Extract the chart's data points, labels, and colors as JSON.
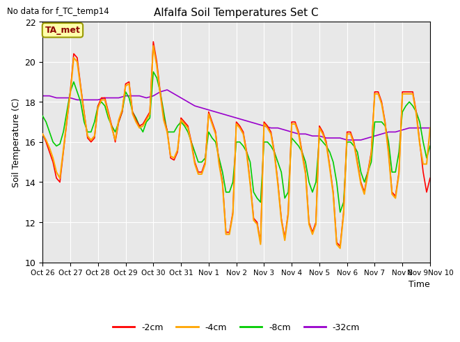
{
  "title": "Alfalfa Soil Temperatures Set C",
  "ylabel": "Soil Temperature (C)",
  "xlabel": "Time",
  "no_data_text": "No data for f_TC_temp14",
  "annotation_text": "TA_met",
  "ylim": [
    10,
    22
  ],
  "yticks": [
    10,
    12,
    14,
    16,
    18,
    20,
    22
  ],
  "xlim": [
    0,
    336
  ],
  "xtick_positions": [
    0,
    24,
    48,
    72,
    96,
    120,
    144,
    168,
    192,
    216,
    240,
    264,
    288,
    312,
    336
  ],
  "xtick_labels": [
    "Oct 26",
    "Oct 27",
    "Oct 28",
    "Oct 29",
    "Oct 30",
    "Oct 31",
    "Nov 1",
    "Nov 2",
    "Nov 3",
    "Nov 4",
    "Nov 5",
    "Nov 6",
    "Nov 7",
    "Nov 8",
    "Nov 9Nov 10"
  ],
  "colors": {
    "-2cm": "#ff0000",
    "-4cm": "#ffa500",
    "-8cm": "#00cc00",
    "-32cm": "#9900cc"
  },
  "background_color": "#e8e8e8",
  "series_2cm": [
    [
      0,
      16.4
    ],
    [
      3,
      16.0
    ],
    [
      6,
      15.5
    ],
    [
      9,
      15.0
    ],
    [
      12,
      14.2
    ],
    [
      15,
      14.0
    ],
    [
      18,
      15.5
    ],
    [
      21,
      17.0
    ],
    [
      24,
      18.5
    ],
    [
      27,
      20.4
    ],
    [
      30,
      20.2
    ],
    [
      33,
      18.8
    ],
    [
      36,
      17.5
    ],
    [
      39,
      16.2
    ],
    [
      42,
      16.0
    ],
    [
      45,
      16.2
    ],
    [
      48,
      17.8
    ],
    [
      51,
      18.2
    ],
    [
      54,
      18.2
    ],
    [
      57,
      17.5
    ],
    [
      60,
      16.8
    ],
    [
      63,
      16.0
    ],
    [
      66,
      17.0
    ],
    [
      69,
      17.5
    ],
    [
      72,
      18.9
    ],
    [
      75,
      19.0
    ],
    [
      78,
      17.5
    ],
    [
      81,
      17.1
    ],
    [
      84,
      16.8
    ],
    [
      87,
      16.9
    ],
    [
      90,
      17.2
    ],
    [
      93,
      17.5
    ],
    [
      96,
      21.0
    ],
    [
      99,
      20.0
    ],
    [
      102,
      18.5
    ],
    [
      105,
      17.2
    ],
    [
      108,
      16.6
    ],
    [
      111,
      15.2
    ],
    [
      114,
      15.1
    ],
    [
      117,
      15.5
    ],
    [
      120,
      17.2
    ],
    [
      123,
      17.0
    ],
    [
      126,
      16.8
    ],
    [
      129,
      16.0
    ],
    [
      132,
      15.0
    ],
    [
      135,
      14.5
    ],
    [
      138,
      14.5
    ],
    [
      141,
      15.0
    ],
    [
      144,
      17.5
    ],
    [
      147,
      17.0
    ],
    [
      150,
      16.5
    ],
    [
      153,
      15.0
    ],
    [
      156,
      14.0
    ],
    [
      159,
      11.5
    ],
    [
      162,
      11.5
    ],
    [
      165,
      12.5
    ],
    [
      168,
      17.0
    ],
    [
      171,
      16.8
    ],
    [
      174,
      16.5
    ],
    [
      177,
      15.5
    ],
    [
      180,
      14.0
    ],
    [
      183,
      12.2
    ],
    [
      186,
      12.0
    ],
    [
      189,
      11.0
    ],
    [
      192,
      17.0
    ],
    [
      195,
      16.8
    ],
    [
      198,
      16.5
    ],
    [
      201,
      15.5
    ],
    [
      204,
      14.0
    ],
    [
      207,
      12.2
    ],
    [
      210,
      11.2
    ],
    [
      213,
      12.5
    ],
    [
      216,
      17.0
    ],
    [
      219,
      17.0
    ],
    [
      222,
      16.5
    ],
    [
      225,
      15.5
    ],
    [
      228,
      14.5
    ],
    [
      231,
      12.0
    ],
    [
      234,
      11.5
    ],
    [
      237,
      12.0
    ],
    [
      240,
      16.8
    ],
    [
      243,
      16.5
    ],
    [
      246,
      16.0
    ],
    [
      249,
      14.8
    ],
    [
      252,
      13.5
    ],
    [
      255,
      11.0
    ],
    [
      258,
      10.8
    ],
    [
      261,
      12.5
    ],
    [
      264,
      16.5
    ],
    [
      267,
      16.5
    ],
    [
      270,
      16.0
    ],
    [
      273,
      15.0
    ],
    [
      276,
      14.0
    ],
    [
      279,
      13.5
    ],
    [
      282,
      14.5
    ],
    [
      285,
      15.5
    ],
    [
      288,
      18.5
    ],
    [
      291,
      18.5
    ],
    [
      294,
      18.0
    ],
    [
      297,
      17.0
    ],
    [
      300,
      15.5
    ],
    [
      303,
      13.5
    ],
    [
      306,
      13.3
    ],
    [
      309,
      14.5
    ],
    [
      312,
      18.5
    ],
    [
      315,
      18.5
    ],
    [
      318,
      18.5
    ],
    [
      321,
      18.5
    ],
    [
      324,
      17.5
    ],
    [
      327,
      16.0
    ],
    [
      330,
      14.5
    ],
    [
      333,
      13.5
    ],
    [
      336,
      14.2
    ]
  ],
  "series_4cm": [
    [
      0,
      16.4
    ],
    [
      3,
      16.1
    ],
    [
      6,
      15.7
    ],
    [
      9,
      15.2
    ],
    [
      12,
      14.5
    ],
    [
      15,
      14.2
    ],
    [
      18,
      15.6
    ],
    [
      21,
      17.1
    ],
    [
      24,
      18.4
    ],
    [
      27,
      20.2
    ],
    [
      30,
      20.0
    ],
    [
      33,
      18.7
    ],
    [
      36,
      17.4
    ],
    [
      39,
      16.3
    ],
    [
      42,
      16.1
    ],
    [
      45,
      16.3
    ],
    [
      48,
      17.7
    ],
    [
      51,
      18.1
    ],
    [
      54,
      18.1
    ],
    [
      57,
      17.4
    ],
    [
      60,
      16.7
    ],
    [
      63,
      16.1
    ],
    [
      66,
      17.1
    ],
    [
      69,
      17.6
    ],
    [
      72,
      18.8
    ],
    [
      75,
      18.9
    ],
    [
      78,
      17.4
    ],
    [
      81,
      17.0
    ],
    [
      84,
      16.7
    ],
    [
      87,
      16.8
    ],
    [
      90,
      17.1
    ],
    [
      93,
      17.4
    ],
    [
      96,
      20.8
    ],
    [
      99,
      19.8
    ],
    [
      102,
      18.4
    ],
    [
      105,
      17.1
    ],
    [
      108,
      16.5
    ],
    [
      111,
      15.3
    ],
    [
      114,
      15.2
    ],
    [
      117,
      15.6
    ],
    [
      120,
      17.1
    ],
    [
      123,
      16.9
    ],
    [
      126,
      16.7
    ],
    [
      129,
      15.9
    ],
    [
      132,
      14.9
    ],
    [
      135,
      14.4
    ],
    [
      138,
      14.4
    ],
    [
      141,
      14.9
    ],
    [
      144,
      17.4
    ],
    [
      147,
      16.9
    ],
    [
      150,
      16.4
    ],
    [
      153,
      14.9
    ],
    [
      156,
      13.9
    ],
    [
      159,
      11.4
    ],
    [
      162,
      11.4
    ],
    [
      165,
      12.4
    ],
    [
      168,
      16.9
    ],
    [
      171,
      16.7
    ],
    [
      174,
      16.4
    ],
    [
      177,
      15.4
    ],
    [
      180,
      13.9
    ],
    [
      183,
      12.1
    ],
    [
      186,
      11.9
    ],
    [
      189,
      10.9
    ],
    [
      192,
      16.9
    ],
    [
      195,
      16.7
    ],
    [
      198,
      16.4
    ],
    [
      201,
      15.4
    ],
    [
      204,
      13.9
    ],
    [
      207,
      12.1
    ],
    [
      210,
      11.1
    ],
    [
      213,
      12.4
    ],
    [
      216,
      16.9
    ],
    [
      219,
      16.9
    ],
    [
      222,
      16.4
    ],
    [
      225,
      15.4
    ],
    [
      228,
      14.4
    ],
    [
      231,
      11.9
    ],
    [
      234,
      11.4
    ],
    [
      237,
      11.9
    ],
    [
      240,
      16.7
    ],
    [
      243,
      16.4
    ],
    [
      246,
      15.9
    ],
    [
      249,
      14.7
    ],
    [
      252,
      13.4
    ],
    [
      255,
      10.9
    ],
    [
      258,
      10.7
    ],
    [
      261,
      12.4
    ],
    [
      264,
      16.4
    ],
    [
      267,
      16.4
    ],
    [
      270,
      15.9
    ],
    [
      273,
      14.9
    ],
    [
      276,
      13.9
    ],
    [
      279,
      13.4
    ],
    [
      282,
      14.4
    ],
    [
      285,
      15.4
    ],
    [
      288,
      18.4
    ],
    [
      291,
      18.4
    ],
    [
      294,
      17.9
    ],
    [
      297,
      16.9
    ],
    [
      300,
      15.4
    ],
    [
      303,
      13.4
    ],
    [
      306,
      13.2
    ],
    [
      309,
      14.4
    ],
    [
      312,
      18.4
    ],
    [
      315,
      18.4
    ],
    [
      318,
      18.4
    ],
    [
      321,
      18.4
    ],
    [
      324,
      17.4
    ],
    [
      327,
      15.9
    ],
    [
      330,
      14.9
    ],
    [
      333,
      14.9
    ],
    [
      336,
      16.7
    ]
  ],
  "series_8cm": [
    [
      0,
      17.3
    ],
    [
      3,
      17.0
    ],
    [
      6,
      16.5
    ],
    [
      9,
      16.0
    ],
    [
      12,
      15.8
    ],
    [
      15,
      15.9
    ],
    [
      18,
      16.5
    ],
    [
      21,
      17.5
    ],
    [
      24,
      18.5
    ],
    [
      27,
      19.0
    ],
    [
      30,
      18.5
    ],
    [
      33,
      18.0
    ],
    [
      36,
      17.0
    ],
    [
      39,
      16.5
    ],
    [
      42,
      16.5
    ],
    [
      45,
      17.0
    ],
    [
      48,
      17.8
    ],
    [
      51,
      18.0
    ],
    [
      54,
      17.8
    ],
    [
      57,
      17.2
    ],
    [
      60,
      16.8
    ],
    [
      63,
      16.5
    ],
    [
      66,
      17.0
    ],
    [
      69,
      17.5
    ],
    [
      72,
      18.5
    ],
    [
      75,
      18.2
    ],
    [
      78,
      17.5
    ],
    [
      81,
      17.2
    ],
    [
      84,
      16.8
    ],
    [
      87,
      16.5
    ],
    [
      90,
      17.0
    ],
    [
      93,
      17.2
    ],
    [
      96,
      19.5
    ],
    [
      99,
      19.2
    ],
    [
      102,
      18.5
    ],
    [
      105,
      17.5
    ],
    [
      108,
      16.5
    ],
    [
      111,
      16.5
    ],
    [
      114,
      16.5
    ],
    [
      117,
      16.8
    ],
    [
      120,
      17.0
    ],
    [
      123,
      16.8
    ],
    [
      126,
      16.5
    ],
    [
      129,
      16.0
    ],
    [
      132,
      15.5
    ],
    [
      135,
      15.0
    ],
    [
      138,
      15.0
    ],
    [
      141,
      15.2
    ],
    [
      144,
      16.5
    ],
    [
      147,
      16.2
    ],
    [
      150,
      16.0
    ],
    [
      153,
      15.2
    ],
    [
      156,
      14.5
    ],
    [
      159,
      13.5
    ],
    [
      162,
      13.5
    ],
    [
      165,
      14.0
    ],
    [
      168,
      16.0
    ],
    [
      171,
      16.0
    ],
    [
      174,
      15.8
    ],
    [
      177,
      15.5
    ],
    [
      180,
      15.0
    ],
    [
      183,
      13.5
    ],
    [
      186,
      13.2
    ],
    [
      189,
      13.0
    ],
    [
      192,
      16.0
    ],
    [
      195,
      16.0
    ],
    [
      198,
      15.8
    ],
    [
      201,
      15.5
    ],
    [
      204,
      15.0
    ],
    [
      207,
      14.5
    ],
    [
      210,
      13.2
    ],
    [
      213,
      13.5
    ],
    [
      216,
      16.2
    ],
    [
      219,
      16.0
    ],
    [
      222,
      15.8
    ],
    [
      225,
      15.5
    ],
    [
      228,
      15.0
    ],
    [
      231,
      14.0
    ],
    [
      234,
      13.5
    ],
    [
      237,
      14.0
    ],
    [
      240,
      16.2
    ],
    [
      243,
      16.0
    ],
    [
      246,
      15.8
    ],
    [
      249,
      15.5
    ],
    [
      252,
      15.0
    ],
    [
      255,
      14.0
    ],
    [
      258,
      12.5
    ],
    [
      261,
      13.0
    ],
    [
      264,
      16.0
    ],
    [
      267,
      16.0
    ],
    [
      270,
      15.8
    ],
    [
      273,
      15.5
    ],
    [
      276,
      14.5
    ],
    [
      279,
      14.0
    ],
    [
      282,
      14.5
    ],
    [
      285,
      15.0
    ],
    [
      288,
      17.0
    ],
    [
      291,
      17.0
    ],
    [
      294,
      17.0
    ],
    [
      297,
      16.8
    ],
    [
      300,
      16.0
    ],
    [
      303,
      14.5
    ],
    [
      306,
      14.5
    ],
    [
      309,
      15.5
    ],
    [
      312,
      17.5
    ],
    [
      315,
      17.8
    ],
    [
      318,
      18.0
    ],
    [
      321,
      17.8
    ],
    [
      324,
      17.5
    ],
    [
      327,
      17.0
    ],
    [
      330,
      16.0
    ],
    [
      333,
      15.2
    ],
    [
      336,
      15.8
    ]
  ],
  "series_32cm": [
    [
      0,
      18.3
    ],
    [
      6,
      18.3
    ],
    [
      12,
      18.2
    ],
    [
      18,
      18.2
    ],
    [
      24,
      18.2
    ],
    [
      30,
      18.1
    ],
    [
      36,
      18.1
    ],
    [
      42,
      18.1
    ],
    [
      48,
      18.1
    ],
    [
      54,
      18.2
    ],
    [
      60,
      18.2
    ],
    [
      66,
      18.2
    ],
    [
      72,
      18.3
    ],
    [
      78,
      18.3
    ],
    [
      84,
      18.3
    ],
    [
      90,
      18.2
    ],
    [
      96,
      18.3
    ],
    [
      102,
      18.5
    ],
    [
      108,
      18.6
    ],
    [
      114,
      18.4
    ],
    [
      120,
      18.2
    ],
    [
      126,
      18.0
    ],
    [
      132,
      17.8
    ],
    [
      138,
      17.7
    ],
    [
      144,
      17.6
    ],
    [
      150,
      17.5
    ],
    [
      156,
      17.4
    ],
    [
      162,
      17.3
    ],
    [
      168,
      17.2
    ],
    [
      174,
      17.1
    ],
    [
      180,
      17.0
    ],
    [
      186,
      16.9
    ],
    [
      192,
      16.8
    ],
    [
      198,
      16.7
    ],
    [
      204,
      16.7
    ],
    [
      210,
      16.6
    ],
    [
      216,
      16.5
    ],
    [
      222,
      16.4
    ],
    [
      228,
      16.4
    ],
    [
      234,
      16.3
    ],
    [
      240,
      16.3
    ],
    [
      246,
      16.2
    ],
    [
      252,
      16.2
    ],
    [
      258,
      16.2
    ],
    [
      264,
      16.1
    ],
    [
      270,
      16.1
    ],
    [
      276,
      16.1
    ],
    [
      282,
      16.2
    ],
    [
      288,
      16.3
    ],
    [
      294,
      16.4
    ],
    [
      300,
      16.5
    ],
    [
      306,
      16.5
    ],
    [
      312,
      16.6
    ],
    [
      318,
      16.7
    ],
    [
      324,
      16.7
    ],
    [
      330,
      16.7
    ],
    [
      336,
      16.7
    ]
  ]
}
